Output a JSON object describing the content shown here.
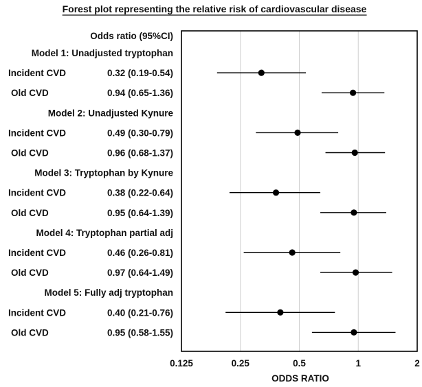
{
  "chart_data": {
    "type": "forest",
    "title": "Forest plot representing the relative risk of cardiovascular disease",
    "column_header": "Odds ratio (95%CI)",
    "xlabel": "ODDS RATIO",
    "x_scale": "log2",
    "xlim": [
      0.125,
      2
    ],
    "x_ticks": [
      "0.125",
      "0.25",
      "0.5",
      "1",
      "2"
    ],
    "x_tick_values": [
      0.125,
      0.25,
      0.5,
      1,
      2
    ],
    "grid": "vertical",
    "point_color": "#000000",
    "grid_color": "#d0d0d0",
    "models": [
      {
        "name": "Model 1: Unadjusted tryptophan",
        "rows": [
          {
            "label": "Incident CVD",
            "ci_text": "0.32 (0.19-0.54)",
            "or": 0.32,
            "lo": 0.19,
            "hi": 0.54
          },
          {
            "label": "Old CVD",
            "ci_text": "0.94 (0.65-1.36)",
            "or": 0.94,
            "lo": 0.65,
            "hi": 1.36
          }
        ]
      },
      {
        "name": "Model 2: Unadjusted Kynure",
        "rows": [
          {
            "label": "Incident CVD",
            "ci_text": "0.49 (0.30-0.79)",
            "or": 0.49,
            "lo": 0.3,
            "hi": 0.79
          },
          {
            "label": "Old CVD",
            "ci_text": "0.96 (0.68-1.37)",
            "or": 0.96,
            "lo": 0.68,
            "hi": 1.37
          }
        ]
      },
      {
        "name": "Model 3: Tryptophan by Kynure",
        "rows": [
          {
            "label": "Incident CVD",
            "ci_text": "0.38 (0.22-0.64)",
            "or": 0.38,
            "lo": 0.22,
            "hi": 0.64
          },
          {
            "label": "Old CVD",
            "ci_text": "0.95 (0.64-1.39)",
            "or": 0.95,
            "lo": 0.64,
            "hi": 1.39
          }
        ]
      },
      {
        "name": "Model 4: Tryptophan partial adj",
        "rows": [
          {
            "label": "Incident CVD",
            "ci_text": "0.46 (0.26-0.81)",
            "or": 0.46,
            "lo": 0.26,
            "hi": 0.81
          },
          {
            "label": "Old CVD",
            "ci_text": "0.97 (0.64-1.49)",
            "or": 0.97,
            "lo": 0.64,
            "hi": 1.49
          }
        ]
      },
      {
        "name": "Model 5: Fully adj tryptophan",
        "rows": [
          {
            "label": "Incident CVD",
            "ci_text": "0.40 (0.21-0.76)",
            "or": 0.4,
            "lo": 0.21,
            "hi": 0.76
          },
          {
            "label": "Old CVD",
            "ci_text": "0.95 (0.58-1.55)",
            "or": 0.95,
            "lo": 0.58,
            "hi": 1.55
          }
        ]
      }
    ]
  }
}
